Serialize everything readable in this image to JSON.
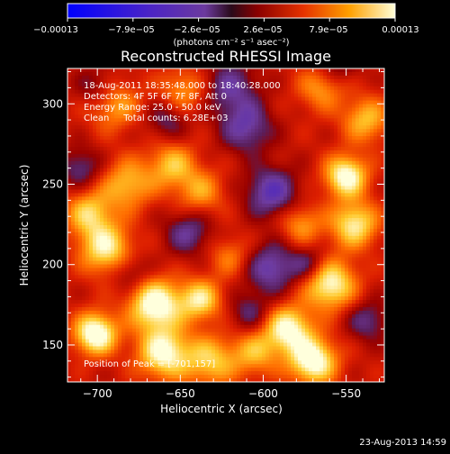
{
  "chart_data": {
    "type": "heatmap",
    "title": "Reconstructed RHESSI Image",
    "xlabel": "Heliocentric X (arcsec)",
    "ylabel": "Heliocentric Y (arcsec)",
    "xlim": [
      -718,
      -527
    ],
    "ylim": [
      127,
      322
    ],
    "xticks": [
      -700,
      -650,
      -600,
      -550
    ],
    "xtick_labels": [
      "−700",
      "−650",
      "−600",
      "−550"
    ],
    "yticks": [
      150,
      200,
      250,
      300
    ],
    "ytick_labels": [
      "150",
      "200",
      "250",
      "300"
    ],
    "colorbar": {
      "min": -0.00013,
      "max": 0.00013,
      "tick_labels": [
        "−0.00013",
        "−7.9e−05",
        "−2.6e−05",
        "2.6e−05",
        "7.9e−05",
        "0.00013"
      ],
      "units": "(photons cm⁻² s⁻¹ asec⁻²)"
    },
    "annotations": {
      "time_range": "18-Aug-2011 18:35:48.000 to 18:40:28.000",
      "detectors": "Detectors: 4F 5F 6F 7F 8F, Att 0",
      "energy_range": "Energy Range: 25.0 - 50.0 keV",
      "method_counts": "Clean     Total counts: 6.28E+03",
      "peak_position": "Position of Peak = [-701,157]"
    },
    "peak": {
      "x": -701,
      "y": 157
    },
    "blobs": [
      {
        "x": -701,
        "y": 157,
        "v": 1.0,
        "s": 9
      },
      {
        "x": -665,
        "y": 175,
        "v": 0.95,
        "s": 11
      },
      {
        "x": -660,
        "y": 145,
        "v": 0.85,
        "s": 11
      },
      {
        "x": -695,
        "y": 210,
        "v": 0.75,
        "s": 11
      },
      {
        "x": -705,
        "y": 232,
        "v": 0.6,
        "s": 10
      },
      {
        "x": -682,
        "y": 250,
        "v": 0.55,
        "s": 11
      },
      {
        "x": -655,
        "y": 262,
        "v": 0.55,
        "s": 10
      },
      {
        "x": -638,
        "y": 245,
        "v": 0.45,
        "s": 10
      },
      {
        "x": -690,
        "y": 300,
        "v": 0.5,
        "s": 11
      },
      {
        "x": -648,
        "y": 308,
        "v": 0.45,
        "s": 10
      },
      {
        "x": -638,
        "y": 178,
        "v": 0.7,
        "s": 9
      },
      {
        "x": -632,
        "y": 140,
        "v": 0.6,
        "s": 11
      },
      {
        "x": -605,
        "y": 145,
        "v": 0.5,
        "s": 10
      },
      {
        "x": -585,
        "y": 160,
        "v": 0.85,
        "s": 10
      },
      {
        "x": -570,
        "y": 140,
        "v": 0.95,
        "s": 10
      },
      {
        "x": -560,
        "y": 188,
        "v": 0.85,
        "s": 11
      },
      {
        "x": -550,
        "y": 255,
        "v": 0.9,
        "s": 9
      },
      {
        "x": -545,
        "y": 225,
        "v": 0.75,
        "s": 10
      },
      {
        "x": -538,
        "y": 290,
        "v": 0.55,
        "s": 10
      },
      {
        "x": -565,
        "y": 310,
        "v": 0.45,
        "s": 10
      },
      {
        "x": -577,
        "y": 225,
        "v": 0.45,
        "s": 9
      },
      {
        "x": -620,
        "y": 205,
        "v": 0.35,
        "s": 9
      },
      {
        "x": -610,
        "y": 285,
        "v": -0.5,
        "s": 11
      },
      {
        "x": -595,
        "y": 245,
        "v": -0.6,
        "s": 11
      },
      {
        "x": -595,
        "y": 198,
        "v": -0.55,
        "s": 11
      },
      {
        "x": -608,
        "y": 170,
        "v": -0.35,
        "s": 9
      },
      {
        "x": -620,
        "y": 310,
        "v": -0.45,
        "s": 12
      },
      {
        "x": -572,
        "y": 200,
        "v": -0.4,
        "s": 8
      },
      {
        "x": -710,
        "y": 260,
        "v": -0.4,
        "s": 9
      },
      {
        "x": -700,
        "y": 310,
        "v": -0.35,
        "s": 9
      },
      {
        "x": -680,
        "y": 195,
        "v": -0.3,
        "s": 8
      },
      {
        "x": -645,
        "y": 220,
        "v": -0.45,
        "s": 10
      },
      {
        "x": -658,
        "y": 290,
        "v": -0.35,
        "s": 9
      },
      {
        "x": -555,
        "y": 325,
        "v": -0.35,
        "s": 9
      },
      {
        "x": -537,
        "y": 165,
        "v": -0.4,
        "s": 9
      }
    ],
    "footer_date": "23-Aug-2013 14:59"
  }
}
